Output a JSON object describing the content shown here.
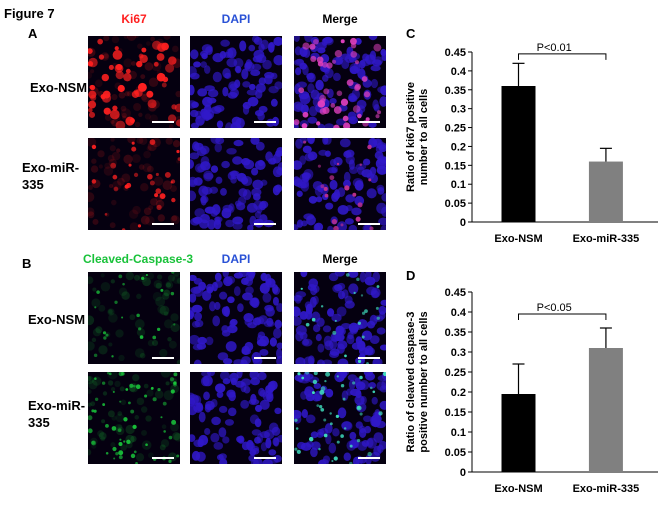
{
  "figure": {
    "title": "Figure 7",
    "panel_labels": {
      "a": "A",
      "b": "B",
      "c": "C",
      "d": "D"
    }
  },
  "panel_a": {
    "columns": [
      "Ki67",
      "DAPI",
      "Merge"
    ],
    "column_colors": [
      "#ff2020",
      "#2a52d6",
      "#000000"
    ],
    "rows": [
      "Exo-NSM",
      "Exo-miR-335"
    ]
  },
  "panel_b": {
    "columns": [
      "Cleaved-Caspase-3",
      "DAPI",
      "Merge"
    ],
    "column_colors": [
      "#19c23a",
      "#2a52d6",
      "#000000"
    ],
    "rows": [
      "Exo-NSM",
      "Exo-miR-335"
    ]
  },
  "colors": {
    "bar_nsm": "#000000",
    "bar_mir335": "#808080",
    "ki67_red": "#ff2020",
    "dapi_blue": "#3018c8",
    "caspase_green": "#19c23a"
  },
  "chart_data": [
    {
      "panel": "C",
      "type": "bar",
      "categories": [
        "Exo-NSM",
        "Exo-miR-335"
      ],
      "values": [
        0.36,
        0.16
      ],
      "errors": [
        0.06,
        0.035
      ],
      "ylabel": "Ratio of ki67 positive number to all cells",
      "ylim": [
        0,
        0.45
      ],
      "yticks": [
        "0",
        "0.05",
        "0.1",
        "0.15",
        "0.2",
        "0.25",
        "0.3",
        "0.35",
        "0.4",
        "0.45"
      ],
      "significance": "P<0.01",
      "grid": false
    },
    {
      "panel": "D",
      "type": "bar",
      "categories": [
        "Exo-NSM",
        "Exo-miR-335"
      ],
      "values": [
        0.195,
        0.31
      ],
      "errors": [
        0.075,
        0.05
      ],
      "ylabel": "Ratio of cleaved caspase-3 positive number to all cells",
      "ylim": [
        0,
        0.45
      ],
      "yticks": [
        "0",
        "0.05",
        "0.1",
        "0.15",
        "0.2",
        "0.25",
        "0.3",
        "0.35",
        "0.4",
        "0.45"
      ],
      "significance": "P<0.05",
      "grid": false
    }
  ]
}
